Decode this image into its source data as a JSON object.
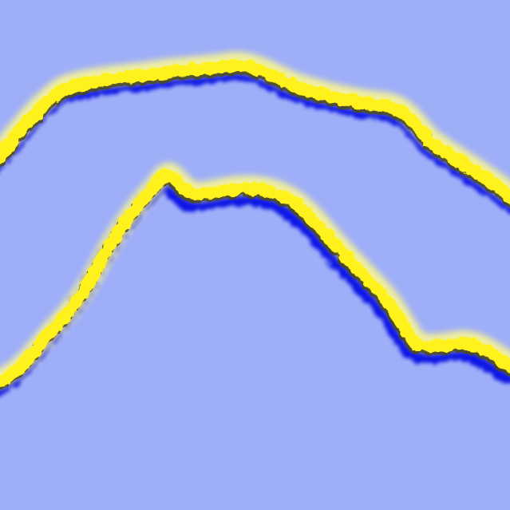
{
  "scene": {
    "background_color": "#9eaef8",
    "stroke_core_color": "#fff21a",
    "stroke_glow_color": "#fffb8a",
    "stroke_shadow_color": "#0a18e6",
    "stroke_dark_edge_color": "#4a4a10"
  }
}
